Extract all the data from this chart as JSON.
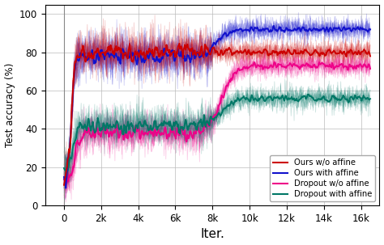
{
  "title": "",
  "xlabel": "Iter.",
  "ylabel": "Test accuracy (%)",
  "xlim": [
    -1000,
    17000
  ],
  "ylim": [
    0,
    105
  ],
  "xticks": [
    0,
    2000,
    4000,
    6000,
    8000,
    10000,
    12000,
    14000,
    16000
  ],
  "xticklabels": [
    "0",
    "2k",
    "4k",
    "6k",
    "8k",
    "10k",
    "12k",
    "14k",
    "16k"
  ],
  "yticks": [
    0,
    20,
    40,
    60,
    80,
    100
  ],
  "colors": {
    "ours_wo_affine": "#cc0000",
    "ours_with_affine": "#1111cc",
    "dropout_wo_affine": "#ee0088",
    "dropout_with_affine": "#007766"
  },
  "legend_labels": [
    "Ours w/o affine",
    "Ours with affine",
    "Dropout w/o affine",
    "Dropout with affine"
  ],
  "n_points": 500,
  "seed": 7
}
